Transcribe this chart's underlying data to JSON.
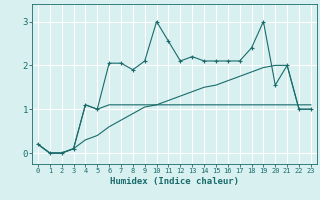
{
  "xlabel": "Humidex (Indice chaleur)",
  "background_color": "#d8f0f0",
  "grid_color": "#ffffff",
  "line_color": "#1a6b6b",
  "x_values": [
    0,
    1,
    2,
    3,
    4,
    5,
    6,
    7,
    8,
    9,
    10,
    11,
    12,
    13,
    14,
    15,
    16,
    17,
    18,
    19,
    20,
    21,
    22,
    23
  ],
  "humidex_curve": [
    0.2,
    0.0,
    0.0,
    0.1,
    1.1,
    1.0,
    2.05,
    2.05,
    1.9,
    2.1,
    3.0,
    2.55,
    2.1,
    2.2,
    2.1,
    2.1,
    2.1,
    2.1,
    2.4,
    3.0,
    1.55,
    2.0,
    1.0,
    1.0
  ],
  "line2": [
    0.2,
    0.0,
    0.0,
    0.1,
    1.1,
    1.0,
    1.1,
    1.1,
    1.1,
    1.1,
    1.1,
    1.1,
    1.1,
    1.1,
    1.1,
    1.1,
    1.1,
    1.1,
    1.1,
    1.1,
    1.1,
    1.1,
    1.1,
    1.1
  ],
  "line3": [
    0.2,
    0.0,
    0.0,
    0.1,
    0.3,
    0.4,
    0.6,
    0.75,
    0.9,
    1.05,
    1.1,
    1.2,
    1.3,
    1.4,
    1.5,
    1.55,
    1.65,
    1.75,
    1.85,
    1.95,
    2.0,
    2.0,
    1.0,
    1.0
  ],
  "ylim": [
    -0.25,
    3.4
  ],
  "xlim": [
    -0.5,
    23.5
  ],
  "yticks": [
    0,
    1,
    2,
    3
  ],
  "xticks": [
    0,
    1,
    2,
    3,
    4,
    5,
    6,
    7,
    8,
    9,
    10,
    11,
    12,
    13,
    14,
    15,
    16,
    17,
    18,
    19,
    20,
    21,
    22,
    23
  ]
}
